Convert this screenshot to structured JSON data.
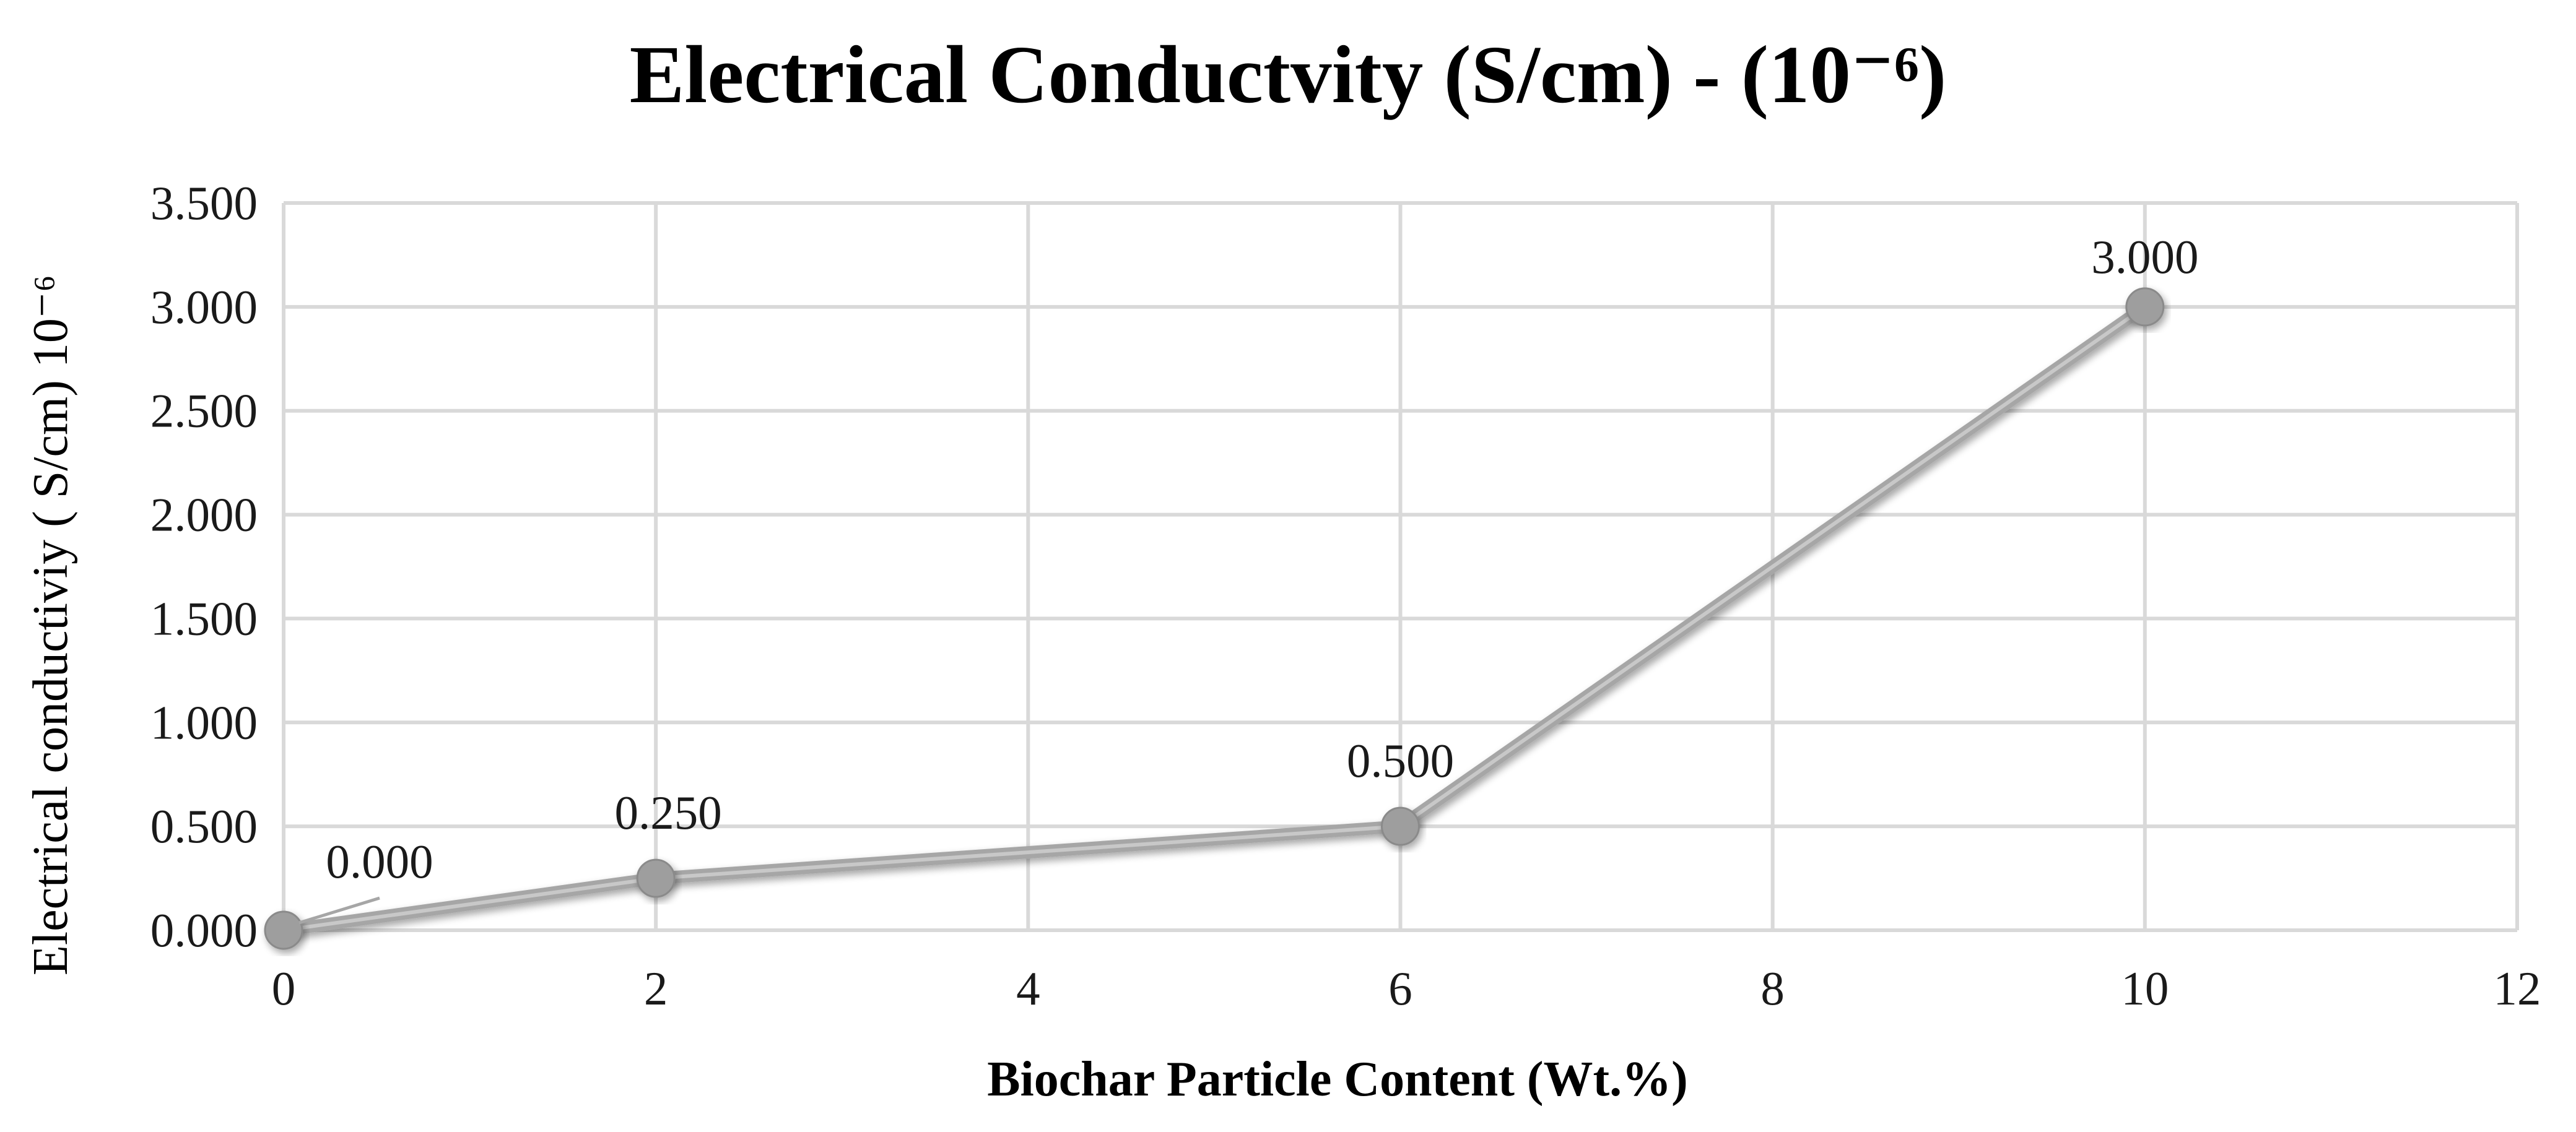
{
  "chart_data": {
    "type": "line",
    "title": "Electrical Conductvity (S/cm) - (10⁻⁶)",
    "xlabel": "Biochar Particle Content (Wt.%)",
    "ylabel": "Electrical conductiviy  ( S/cm) 10⁻⁶",
    "x": [
      0,
      2,
      6,
      10
    ],
    "series": [
      {
        "name": "Electrical Conductivity",
        "values": [
          0.0,
          0.25,
          0.5,
          3.0
        ],
        "data_labels": [
          "0.000",
          "0.250",
          "0.500",
          "3.000"
        ]
      }
    ],
    "xlim": [
      0,
      12
    ],
    "ylim": [
      0,
      3.5
    ],
    "x_ticks": [
      "0",
      "2",
      "4",
      "6",
      "8",
      "10",
      "12"
    ],
    "y_ticks": [
      "0.000",
      "0.500",
      "1.000",
      "1.500",
      "2.000",
      "2.500",
      "3.000",
      "3.500"
    ],
    "grid": true,
    "legend": "none",
    "colors": {
      "line": "#a6a6a6",
      "marker": "#9e9e9e",
      "grid": "#d9d9d9"
    }
  }
}
